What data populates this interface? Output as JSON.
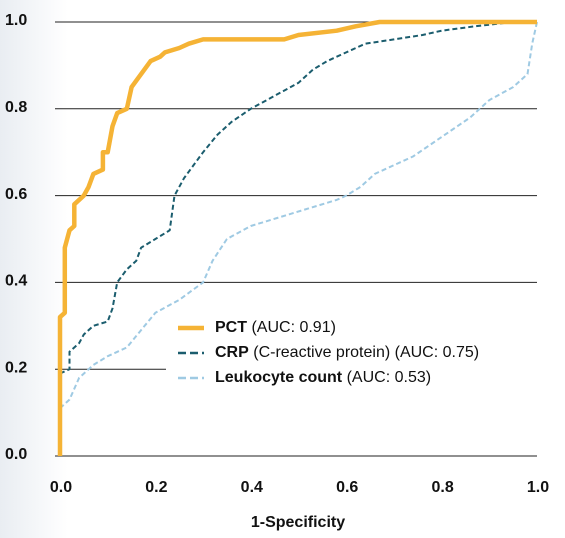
{
  "chart_data": {
    "type": "line",
    "xlabel": "1-Specificity",
    "xlim": [
      0,
      1
    ],
    "ylim": [
      0,
      1
    ],
    "xticks": [
      {
        "value": 0,
        "label": "0.0"
      },
      0.2,
      0.4,
      0.6,
      0.8,
      {
        "value": 1,
        "label": "1.0"
      }
    ],
    "yticks": [
      {
        "value": 0,
        "label": "0.0"
      },
      0.2,
      0.4,
      0.6,
      0.8,
      {
        "value": 1,
        "label": "1.0"
      }
    ],
    "grid": true,
    "legend": "lower right",
    "series": [
      {
        "name": "PCT",
        "auc_label": "(AUC: 0.91)",
        "color": "#f5b335",
        "line_style": "solid",
        "x": [
          0,
          0,
          0.01,
          0.01,
          0.02,
          0.03,
          0.03,
          0.05,
          0.06,
          0.07,
          0.09,
          0.09,
          0.1,
          0.11,
          0.12,
          0.14,
          0.15,
          0.17,
          0.19,
          0.21,
          0.22,
          0.25,
          0.27,
          0.3,
          0.47,
          0.5,
          0.58,
          0.62,
          0.67,
          1.0
        ],
        "values": [
          0,
          0.32,
          0.33,
          0.48,
          0.52,
          0.53,
          0.58,
          0.6,
          0.62,
          0.65,
          0.66,
          0.7,
          0.7,
          0.76,
          0.79,
          0.8,
          0.85,
          0.88,
          0.91,
          0.92,
          0.93,
          0.94,
          0.95,
          0.96,
          0.96,
          0.97,
          0.98,
          0.99,
          1.0,
          1.0
        ]
      },
      {
        "name": "CRP",
        "auc_label": "(C-reactive protein) (AUC: 0.75)",
        "color": "#1b5d6e",
        "line_style": "dashed",
        "x": [
          0,
          0.02,
          0.02,
          0.04,
          0.05,
          0.07,
          0.1,
          0.11,
          0.12,
          0.14,
          0.16,
          0.17,
          0.2,
          0.23,
          0.24,
          0.26,
          0.3,
          0.33,
          0.36,
          0.4,
          0.45,
          0.5,
          0.53,
          0.56,
          0.6,
          0.64,
          0.7,
          0.76,
          0.8,
          0.87,
          0.95,
          1.0
        ],
        "values": [
          0.19,
          0.2,
          0.24,
          0.26,
          0.28,
          0.3,
          0.31,
          0.34,
          0.4,
          0.43,
          0.45,
          0.48,
          0.5,
          0.52,
          0.6,
          0.64,
          0.7,
          0.74,
          0.77,
          0.8,
          0.83,
          0.86,
          0.89,
          0.91,
          0.93,
          0.95,
          0.96,
          0.97,
          0.98,
          0.99,
          1.0,
          1.0
        ]
      },
      {
        "name": "Leukocyte count",
        "auc_label": "(AUC: 0.53)",
        "color": "#9fcae3",
        "line_style": "dashed",
        "x": [
          0,
          0.02,
          0.04,
          0.07,
          0.1,
          0.14,
          0.17,
          0.2,
          0.25,
          0.3,
          0.32,
          0.35,
          0.4,
          0.46,
          0.52,
          0.58,
          0.6,
          0.63,
          0.66,
          0.7,
          0.74,
          0.78,
          0.82,
          0.86,
          0.9,
          0.95,
          0.98,
          0.99,
          1.0
        ],
        "values": [
          0.11,
          0.13,
          0.18,
          0.21,
          0.23,
          0.25,
          0.29,
          0.33,
          0.36,
          0.4,
          0.45,
          0.5,
          0.53,
          0.55,
          0.57,
          0.59,
          0.6,
          0.62,
          0.65,
          0.67,
          0.69,
          0.72,
          0.75,
          0.78,
          0.82,
          0.85,
          0.88,
          0.95,
          1.0
        ]
      }
    ]
  }
}
